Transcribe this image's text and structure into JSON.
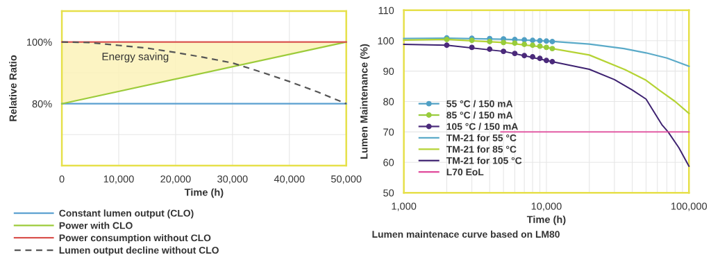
{
  "chart_data": [
    {
      "type": "line",
      "xlabel": "Time (h)",
      "ylabel": "Relative Ratio",
      "xlim": [
        0,
        50000
      ],
      "ylim": [
        60,
        110
      ],
      "xticks": [
        {
          "value": 0,
          "label": "0"
        },
        {
          "value": 10000,
          "label": "10,000"
        },
        {
          "value": 20000,
          "label": "20,000"
        },
        {
          "value": 30000,
          "label": "30,000"
        },
        {
          "value": 40000,
          "label": "40,000"
        },
        {
          "value": 50000,
          "label": "50,000"
        }
      ],
      "yticks": [
        {
          "value": 70,
          "label": null
        },
        {
          "value": 80,
          "label": "80%"
        },
        {
          "value": 90,
          "label": null
        },
        {
          "value": 100,
          "label": "100%"
        }
      ],
      "grid": true,
      "legend": "bottom",
      "marker": "none",
      "annotations": [
        "Energy saving"
      ],
      "series": [
        {
          "name": "Constant lumen output (CLO)",
          "color": "#5a9fd0",
          "x": [
            0,
            50000
          ],
          "values": [
            80,
            80
          ]
        },
        {
          "name": "Power with CLO",
          "color": "#9ccb3a",
          "x": [
            0,
            50000
          ],
          "values": [
            80,
            100
          ],
          "lower": [
            80,
            100
          ],
          "upper": [
            100,
            100
          ]
        },
        {
          "name": "Power consumption without CLO",
          "color": "#d9534f",
          "x": [
            0,
            50000
          ],
          "values": [
            100,
            100
          ]
        },
        {
          "name": "Lumen output decline without CLO",
          "color": "#555555",
          "line_style": "dashed",
          "x": [
            0,
            5000,
            10000,
            15000,
            20000,
            25000,
            30000,
            35000,
            40000,
            45000,
            50000
          ],
          "values": [
            100,
            99.8,
            98.9,
            98,
            96.6,
            95,
            93.2,
            90.3,
            87.2,
            83.8,
            80
          ]
        }
      ]
    },
    {
      "type": "line",
      "xlabel": "Time (h)",
      "ylabel": "Lumen Maintenance (%)",
      "log": "x",
      "xlim": [
        1000,
        100000
      ],
      "ylim": [
        50,
        110
      ],
      "xticks": [
        {
          "value": 1000,
          "label": "1,000"
        },
        {
          "value": 2000,
          "label": null
        },
        {
          "value": 3000,
          "label": null
        },
        {
          "value": 4000,
          "label": null
        },
        {
          "value": 5000,
          "label": null
        },
        {
          "value": 6000,
          "label": null
        },
        {
          "value": 7000,
          "label": null
        },
        {
          "value": 8000,
          "label": null
        },
        {
          "value": 9000,
          "label": null
        },
        {
          "value": 10000,
          "label": "10,000"
        },
        {
          "value": 20000,
          "label": null
        },
        {
          "value": 30000,
          "label": null
        },
        {
          "value": 40000,
          "label": null
        },
        {
          "value": 50000,
          "label": null
        },
        {
          "value": 60000,
          "label": null
        },
        {
          "value": 70000,
          "label": null
        },
        {
          "value": 80000,
          "label": null
        },
        {
          "value": 90000,
          "label": null
        },
        {
          "value": 100000,
          "label": "100,000"
        }
      ],
      "yticks": [
        50,
        60,
        70,
        80,
        90,
        100,
        110
      ],
      "grid": true,
      "legend": "bottom left",
      "annotations": [
        "Lumen maintenace curve based on LM80"
      ],
      "series": [
        {
          "name": "TM-21 for 55 °C",
          "color": "#5aaac8",
          "type": "line",
          "marker": "none",
          "x": [
            1000,
            2000,
            5000,
            10000,
            20000,
            35000,
            50000,
            70000,
            100000
          ],
          "values": [
            100.7,
            100.8,
            100.5,
            99.9,
            98.9,
            97.4,
            96.0,
            94.3,
            91.6
          ]
        },
        {
          "name": "TM-21 for 85 °C",
          "color": "#b5d334",
          "type": "line",
          "marker": "none",
          "x": [
            1000,
            2000,
            5000,
            10000,
            11000,
            20000,
            35600,
            50000,
            62400,
            80000,
            100000
          ],
          "values": [
            100.2,
            100.4,
            99.4,
            97.8,
            97.4,
            95.3,
            90.5,
            87.0,
            83.6,
            80.0,
            76.1
          ]
        },
        {
          "name": "TM-21 for 105 °C",
          "color": "#3d2170",
          "type": "line",
          "marker": "none",
          "x": [
            1000,
            2000,
            5000,
            11000,
            20000,
            30000,
            40000,
            50000,
            64500,
            71400,
            85000,
            100000
          ],
          "values": [
            98.8,
            98.5,
            96.5,
            93.1,
            90.6,
            87.2,
            83.8,
            80.8,
            72.4,
            70,
            64.8,
            58.7
          ]
        },
        {
          "name": "L70 EoL",
          "color": "#e0489a",
          "type": "line",
          "marker": "none",
          "x": [
            4800,
            100000
          ],
          "values": [
            70,
            70
          ]
        },
        {
          "name": "55 °C / 150 mA",
          "color": "#4f9fc4",
          "type": "scatter",
          "marker": "circle",
          "x": [
            2000,
            3000,
            4000,
            5000,
            6000,
            7000,
            8000,
            9000,
            10000,
            11000
          ],
          "values": [
            100.9,
            100.8,
            100.7,
            100.6,
            100.4,
            100.3,
            100.1,
            100.0,
            99.9,
            99.7
          ]
        },
        {
          "name": "85 °C / 150 mA",
          "color": "#98cc3c",
          "type": "scatter",
          "marker": "circle",
          "x": [
            2000,
            3000,
            4000,
            5000,
            6000,
            7000,
            8000,
            9000,
            10000,
            11000
          ],
          "values": [
            100.4,
            100.1,
            99.7,
            99.4,
            99.2,
            98.8,
            98.5,
            98.2,
            97.8,
            97.4
          ]
        },
        {
          "name": "105 °C / 150 mA",
          "color": "#4b2a7b",
          "type": "scatter",
          "marker": "circle",
          "x": [
            2000,
            3000,
            4000,
            5000,
            6000,
            7000,
            8000,
            9000,
            10000,
            11000
          ],
          "values": [
            98.5,
            97.8,
            97.2,
            96.5,
            95.8,
            95.1,
            94.7,
            94.2,
            93.5,
            93.1
          ]
        }
      ]
    }
  ]
}
